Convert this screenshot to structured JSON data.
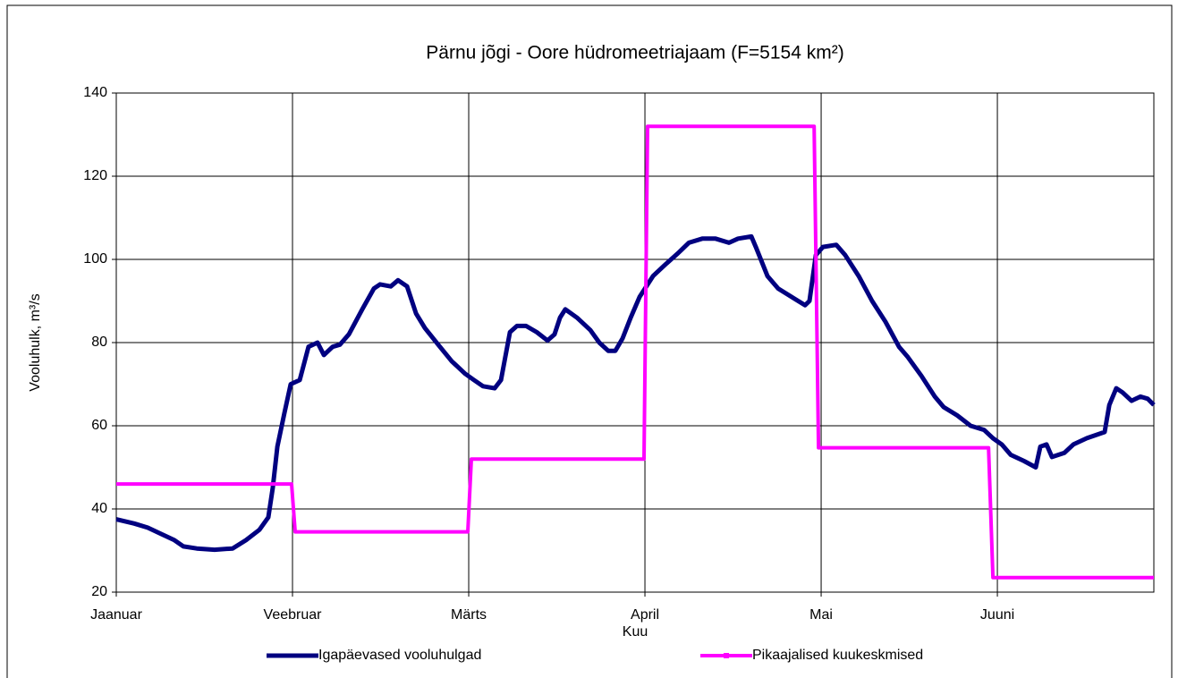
{
  "chart_data": {
    "type": "line",
    "title": "Pärnu jõgi - Oore hüdromeetriajaam (F=5154 km²)",
    "xlabel": "Kuu",
    "ylabel": "Vooluhulk, m³/s",
    "xlim": [
      0,
      5.888
    ],
    "xticks": [
      {
        "value": 0,
        "label": "Jaanuar"
      },
      {
        "value": 1,
        "label": "Veebruar"
      },
      {
        "value": 2,
        "label": "Märts"
      },
      {
        "value": 3,
        "label": "April"
      },
      {
        "value": 4,
        "label": "Mai"
      },
      {
        "value": 5,
        "label": "Juuni"
      }
    ],
    "ylim": [
      20,
      140
    ],
    "yticks": [
      20,
      40,
      60,
      80,
      100,
      120,
      140
    ],
    "grid": true,
    "legend": "bottom",
    "series": [
      {
        "name": "Igapäevased vooluhulgad",
        "color": "#000080",
        "x": [
          0,
          0.102,
          0.178,
          0.254,
          0.33,
          0.381,
          0.457,
          0.558,
          0.66,
          0.736,
          0.812,
          0.863,
          0.888,
          0.914,
          0.954,
          0.99,
          1.041,
          1.091,
          1.142,
          1.178,
          1.228,
          1.269,
          1.32,
          1.396,
          1.462,
          1.497,
          1.558,
          1.599,
          1.65,
          1.701,
          1.751,
          1.827,
          1.904,
          1.98,
          2.03,
          2.081,
          2.147,
          2.183,
          2.234,
          2.274,
          2.325,
          2.386,
          2.447,
          2.487,
          2.518,
          2.548,
          2.614,
          2.69,
          2.741,
          2.792,
          2.832,
          2.873,
          2.919,
          2.97,
          3.046,
          3.122,
          3.188,
          3.249,
          3.325,
          3.401,
          3.477,
          3.528,
          3.604,
          3.629,
          3.695,
          3.756,
          3.832,
          3.909,
          3.934,
          3.97,
          4.01,
          4.086,
          4.137,
          4.213,
          4.289,
          4.365,
          4.442,
          4.492,
          4.569,
          4.645,
          4.695,
          4.772,
          4.848,
          4.924,
          4.975,
          5.025,
          5.076,
          5.152,
          5.218,
          5.244,
          5.279,
          5.31,
          5.381,
          5.431,
          5.508,
          5.609,
          5.635,
          5.675,
          5.711,
          5.761,
          5.812,
          5.853,
          5.888
        ],
        "values": [
          37.5,
          36.5,
          35.5,
          34,
          32.5,
          31,
          30.5,
          30.2,
          30.5,
          32.5,
          35,
          38,
          45,
          55,
          63,
          70,
          71,
          79,
          80,
          77,
          79,
          79.5,
          82,
          88,
          93,
          94,
          93.5,
          95,
          93.5,
          87,
          83.5,
          79.5,
          75.5,
          72.5,
          71,
          69.5,
          69,
          71,
          82.5,
          84,
          84,
          82.5,
          80.5,
          82,
          86,
          88,
          86,
          83,
          80,
          78,
          78,
          81,
          86,
          91,
          96,
          99,
          101.5,
          104,
          105,
          105,
          104,
          105,
          105.5,
          103,
          96,
          93,
          91,
          89,
          90,
          101,
          103,
          103.5,
          101,
          96,
          90,
          85,
          79,
          76.5,
          72,
          67,
          64.5,
          62.5,
          60,
          59,
          57,
          55.5,
          53,
          51.5,
          50,
          55,
          55.5,
          52.5,
          53.5,
          55.5,
          57,
          58.5,
          65,
          69,
          68,
          66,
          67,
          66.5,
          65
        ]
      },
      {
        "name": "Pikaajalised kuukeskmised",
        "color": "#ff00ff",
        "x": [
          0,
          0.995,
          1.015,
          1.995,
          2.015,
          2.995,
          3.015,
          3.96,
          3.985,
          4.95,
          4.975,
          5.888
        ],
        "values": [
          46,
          46,
          34.5,
          34.5,
          52,
          52,
          132,
          132,
          54.7,
          54.7,
          23.5,
          23.5
        ]
      }
    ]
  }
}
